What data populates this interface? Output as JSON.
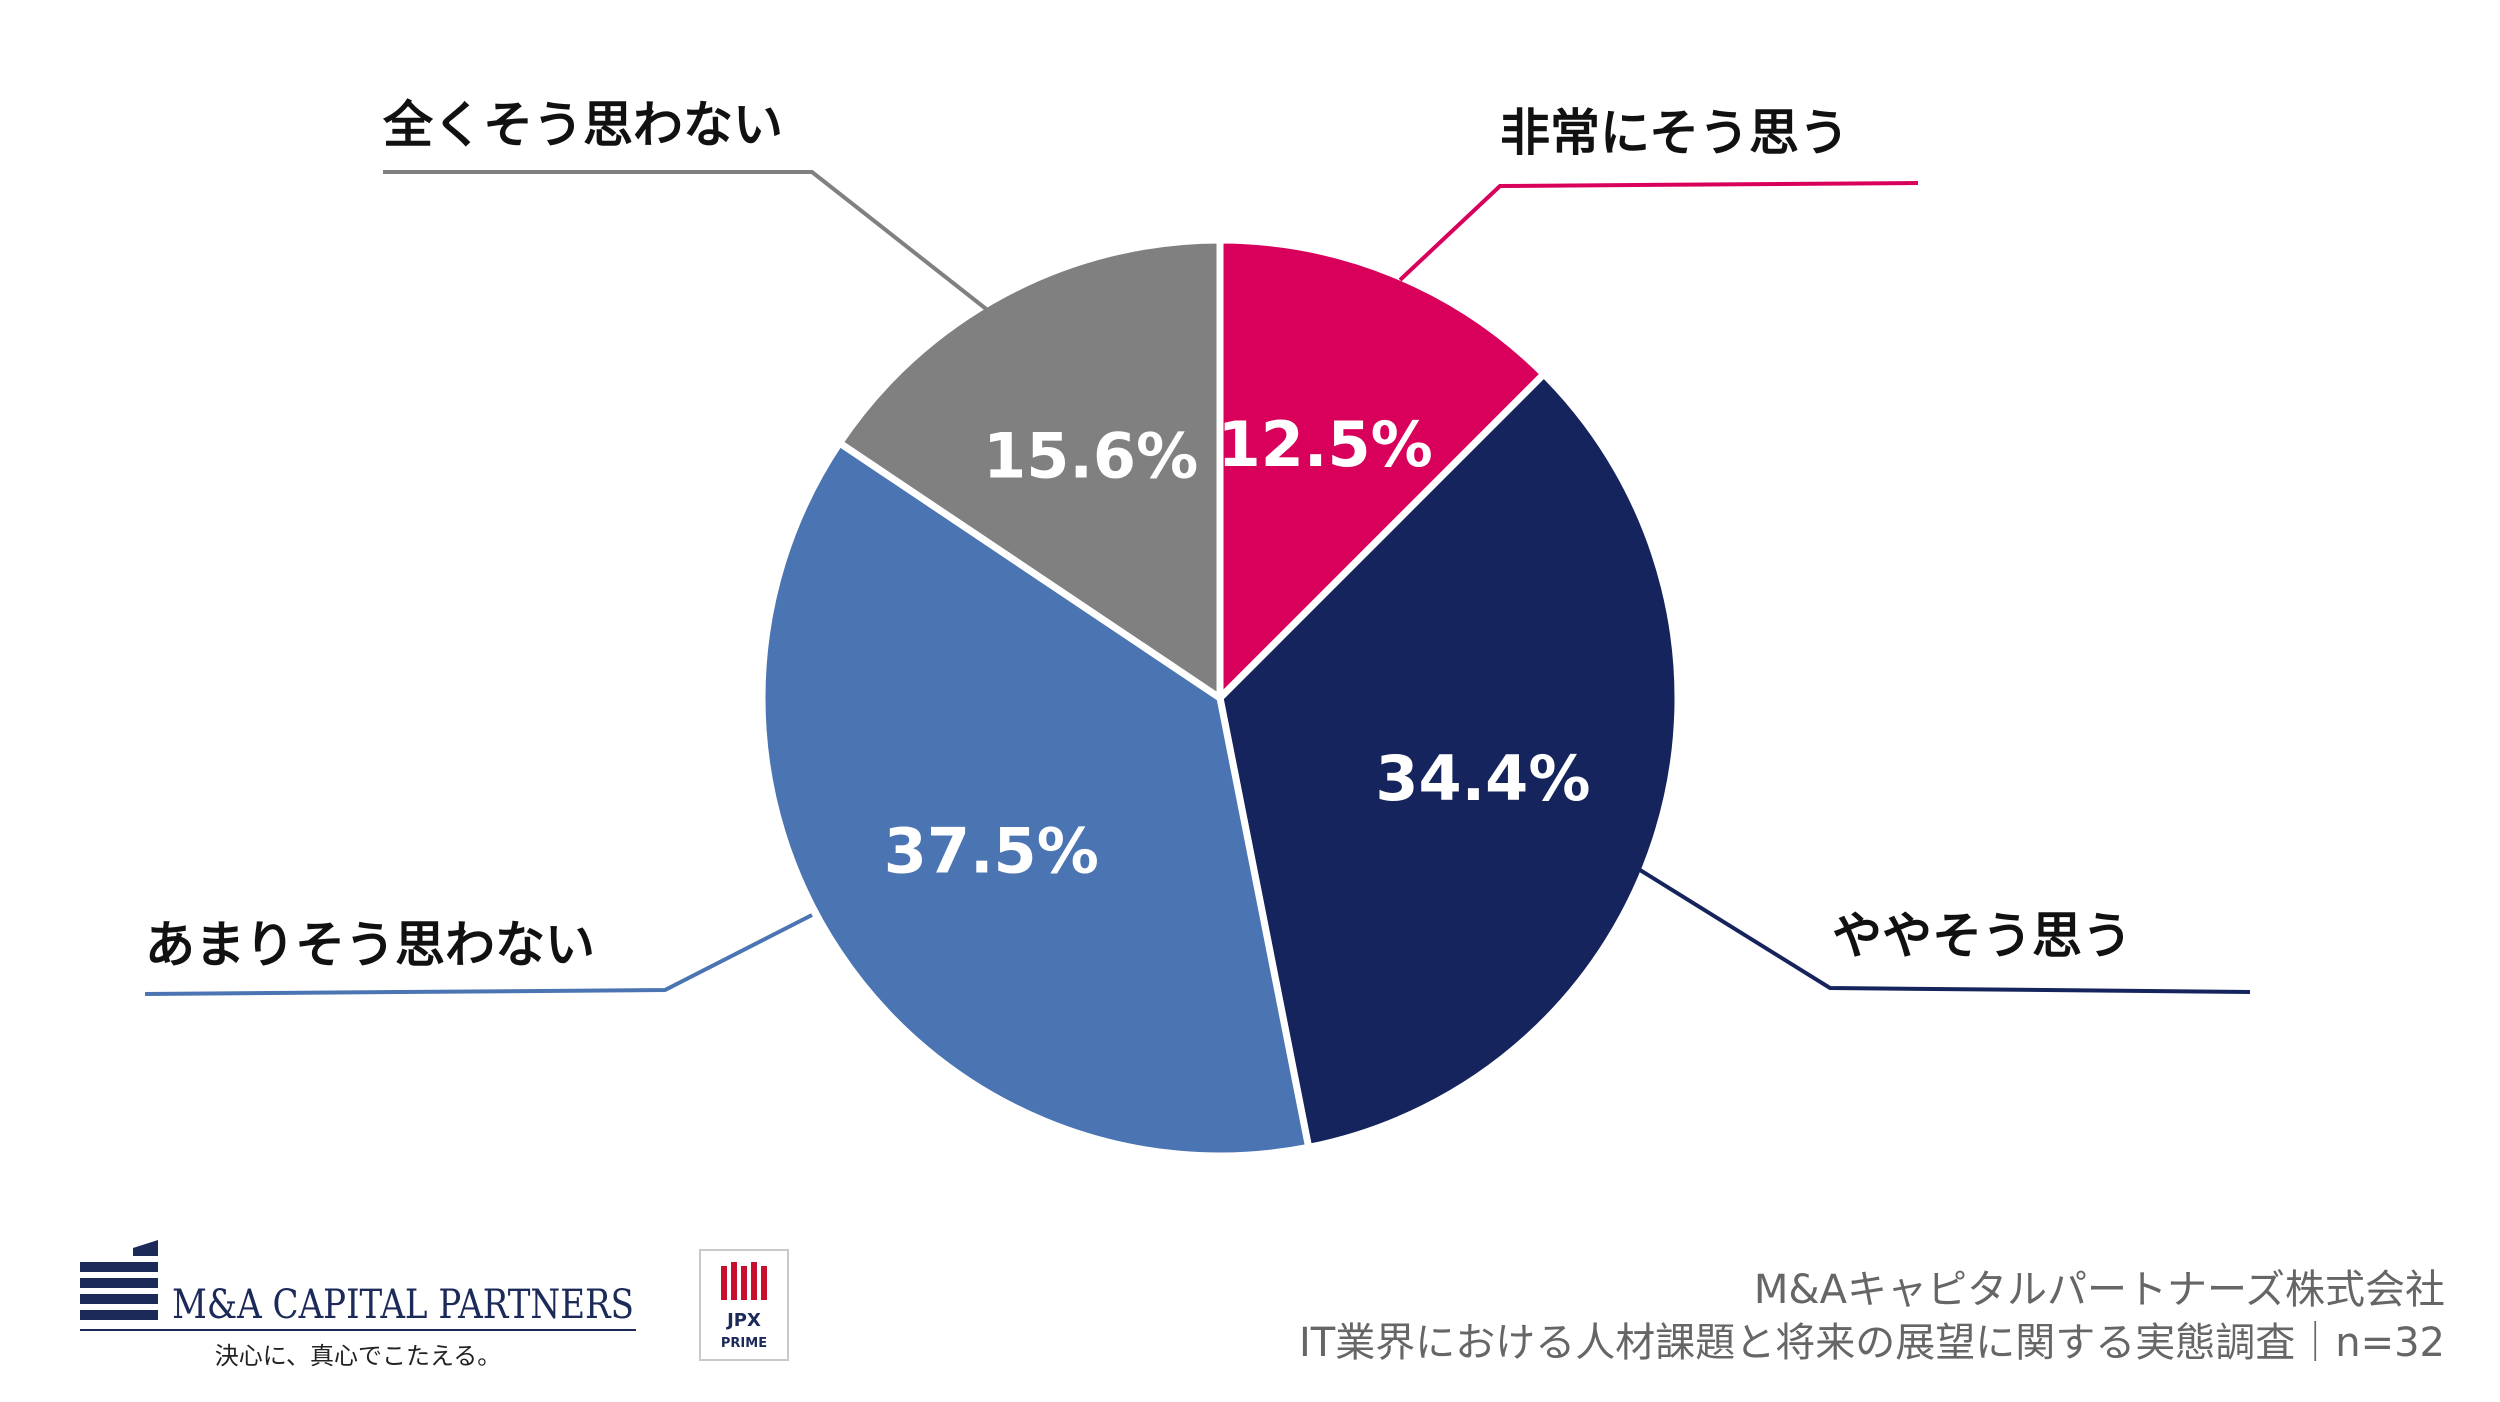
{
  "chart_data": {
    "type": "pie",
    "start": "top",
    "direction": "clockwise",
    "slices": [
      {
        "label": "非常にそう思う",
        "value": 12.5,
        "display": "12.5%",
        "color": "#d9005b"
      },
      {
        "label": "ややそう思う",
        "value": 34.4,
        "display": "34.4%",
        "color": "#15245c"
      },
      {
        "label": "あまりそう思わない",
        "value": 37.5,
        "display": "37.5%",
        "color": "#4b74b2"
      },
      {
        "label": "全くそう思わない",
        "value": 15.6,
        "display": "15.6%",
        "color": "#808080"
      }
    ]
  },
  "footer": {
    "company": "M&Aキャピタルパートナーズ株式会社",
    "survey": "IT業界における人材課題と将来の展望に関する実態調査｜n=32"
  },
  "branding": {
    "name": "M&A CAPITAL PARTNERS",
    "tagline": "決心に、真心でこたえる。",
    "badge_top": "JPX",
    "badge_bottom": "PRIME",
    "colors": {
      "navy": "#1b2a59",
      "red": "#c8102e"
    }
  }
}
